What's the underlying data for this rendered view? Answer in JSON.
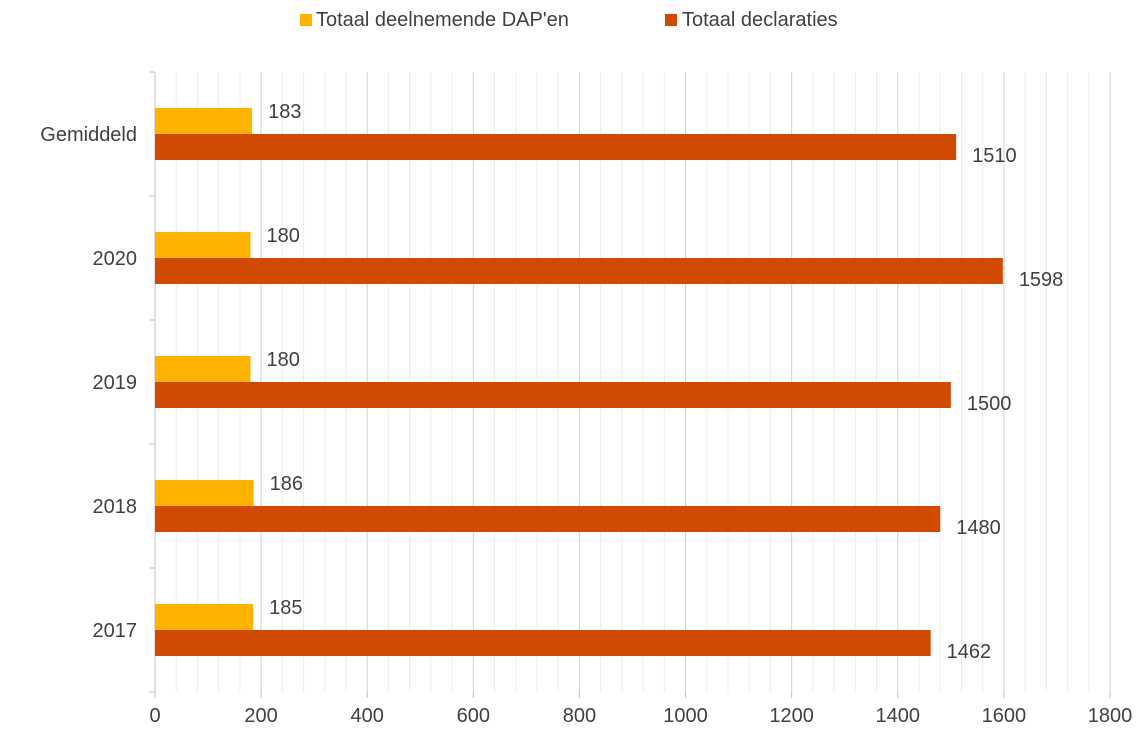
{
  "chart_data": {
    "type": "bar",
    "orientation": "horizontal",
    "title": "",
    "xlabel": "",
    "ylabel": "",
    "categories": [
      "Gemiddeld",
      "2020",
      "2019",
      "2018",
      "2017"
    ],
    "series": [
      {
        "name": "Totaal deelnemende DAP'en",
        "color": "#FFB300",
        "values": [
          183,
          180,
          180,
          186,
          185
        ]
      },
      {
        "name": "Totaal declaraties",
        "color": "#D04A02",
        "values": [
          1510,
          1598,
          1500,
          1480,
          1462
        ]
      }
    ],
    "xlim": [
      0,
      1800
    ],
    "xticks": [
      0,
      200,
      400,
      600,
      800,
      1000,
      1200,
      1400,
      1600,
      1800
    ],
    "minor_step": 40,
    "grid": true,
    "legend_position": "top-center",
    "data_labels": true
  }
}
